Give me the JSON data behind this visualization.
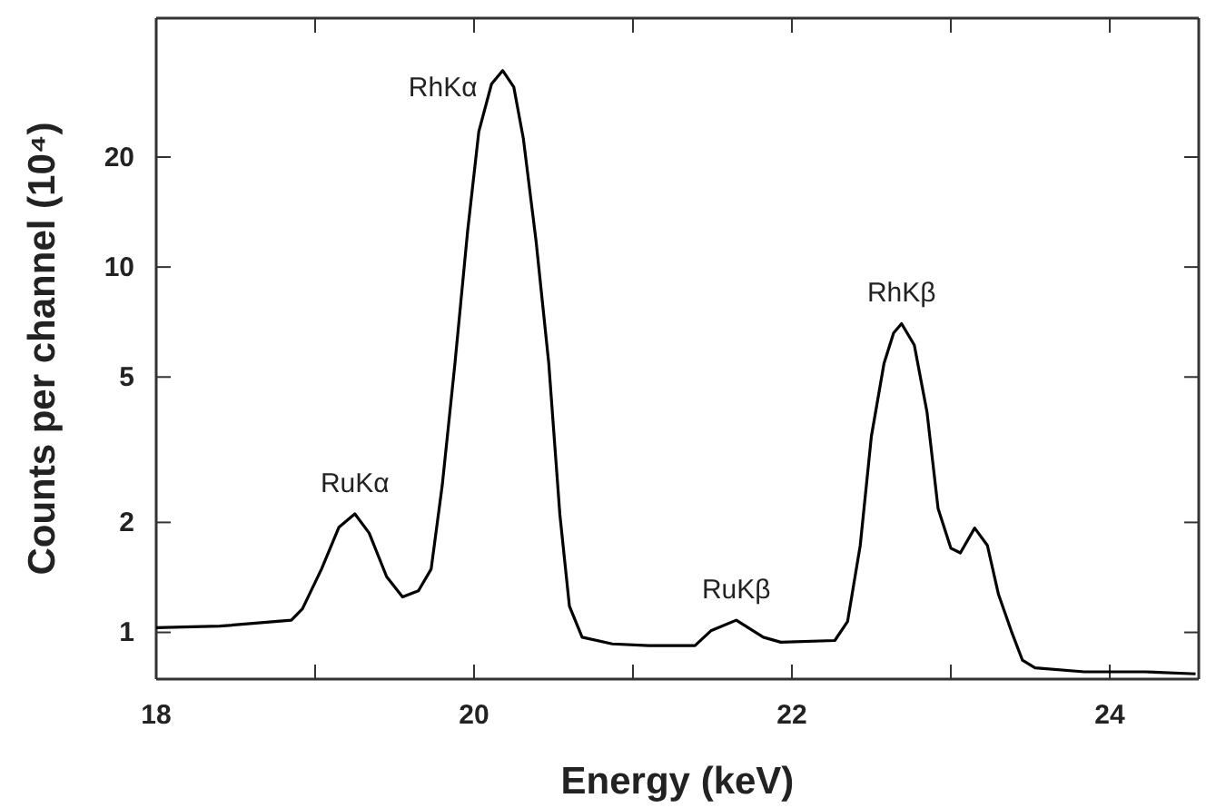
{
  "chart_data": {
    "type": "line",
    "xlabel": "Energy (keV)",
    "ylabel": "Counts per channel (10⁴)",
    "log": true,
    "xlim": [
      18,
      24.56
    ],
    "ylim": [
      0.745,
      48
    ],
    "xticks": [
      18,
      {
        "value": 19,
        "label": null
      },
      20,
      {
        "value": 21,
        "label": null
      },
      22,
      {
        "value": 23,
        "label": null
      },
      24
    ],
    "yticks": [
      1,
      2,
      5,
      10,
      20
    ],
    "marker": "none",
    "line_style": "solid",
    "grid": false,
    "series": [
      {
        "color": "#000000",
        "x": [
          18.0,
          18.4,
          18.85,
          18.92,
          19.04,
          19.15,
          19.25,
          19.34,
          19.45,
          19.55,
          19.65,
          19.73,
          19.8,
          19.88,
          19.96,
          20.03,
          20.11,
          20.18,
          20.25,
          20.31,
          20.39,
          20.47,
          20.54,
          20.6,
          20.68,
          20.87,
          21.1,
          21.39,
          21.49,
          21.65,
          21.82,
          21.93,
          22.27,
          22.35,
          22.43,
          22.5,
          22.58,
          22.64,
          22.69,
          22.77,
          22.85,
          22.92,
          23.0,
          23.06,
          23.15,
          23.23,
          23.3,
          23.38,
          23.45,
          23.53,
          23.84,
          24.22,
          24.54
        ],
        "values": [
          1.03,
          1.04,
          1.08,
          1.16,
          1.49,
          1.94,
          2.11,
          1.87,
          1.42,
          1.25,
          1.3,
          1.49,
          2.53,
          5.46,
          12.6,
          23.5,
          31.7,
          34.5,
          31.1,
          22.5,
          11.8,
          5.46,
          2.1,
          1.18,
          0.97,
          0.93,
          0.92,
          0.92,
          1.01,
          1.08,
          0.97,
          0.94,
          0.95,
          1.07,
          1.73,
          3.44,
          5.46,
          6.6,
          7.0,
          6.12,
          4.01,
          2.18,
          1.7,
          1.65,
          1.93,
          1.73,
          1.27,
          1.01,
          0.84,
          0.8,
          0.78,
          0.78,
          0.77
        ]
      }
    ],
    "annotations": [
      {
        "text": "RuKα",
        "x": 19.25,
        "y": 2.11
      },
      {
        "text": "RhKα",
        "x": 20.18,
        "y": 34.5
      },
      {
        "text": "RuKβ",
        "x": 21.65,
        "y": 1.08
      },
      {
        "text": "RhKβ",
        "x": 22.69,
        "y": 7.0
      }
    ]
  }
}
